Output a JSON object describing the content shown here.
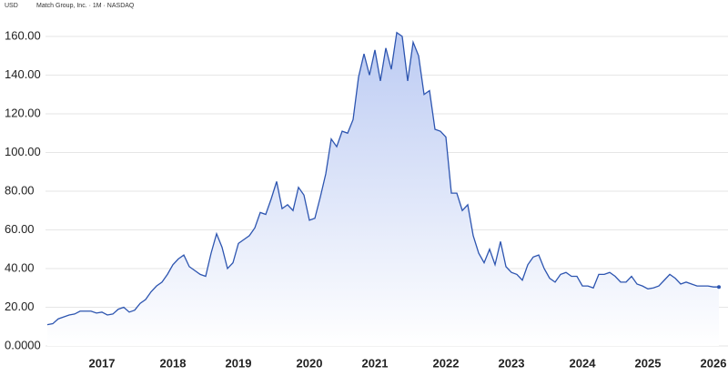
{
  "chart_data": {
    "type": "area",
    "currency": "USD",
    "title": "Match Group, Inc. · 1M · NASDAQ",
    "categories": [
      null,
      null,
      null,
      null,
      null,
      null,
      null,
      null,
      null,
      null,
      "2017",
      null,
      null,
      null,
      null,
      null,
      null,
      null,
      null,
      null,
      null,
      null,
      null,
      "2018",
      null,
      null,
      null,
      null,
      null,
      null,
      null,
      null,
      null,
      null,
      null,
      "2019",
      null,
      null,
      null,
      null,
      null,
      null,
      null,
      null,
      null,
      null,
      null,
      null,
      "2020",
      null,
      null,
      null,
      null,
      null,
      null,
      null,
      null,
      null,
      null,
      null,
      "2021",
      null,
      null,
      null,
      null,
      null,
      null,
      null,
      null,
      null,
      null,
      null,
      null,
      "2022",
      null,
      null,
      null,
      null,
      null,
      null,
      null,
      null,
      null,
      null,
      null,
      "2023",
      null,
      null,
      null,
      null,
      null,
      null,
      null,
      null,
      null,
      null,
      null,
      null,
      "2024",
      null,
      null,
      null,
      null,
      null,
      null,
      null,
      null,
      null,
      null,
      null,
      "2025",
      null,
      null,
      null,
      null,
      null,
      null,
      null,
      null,
      null,
      null,
      null,
      "2026",
      null
    ],
    "values": [
      11,
      11.5,
      14,
      15,
      16,
      16.5,
      18,
      18,
      18,
      17,
      17.5,
      16,
      16.5,
      19,
      20,
      17.5,
      18.5,
      22,
      24,
      28,
      31,
      33,
      37,
      42,
      45,
      47,
      41,
      39,
      37,
      36,
      48,
      58,
      51,
      40,
      43,
      53,
      55,
      57,
      61,
      69,
      68,
      76,
      85,
      71,
      73,
      70,
      82,
      78,
      65,
      66,
      77,
      89,
      107,
      103,
      111,
      110,
      117,
      139,
      151,
      140,
      153,
      137,
      154,
      143,
      162,
      160,
      137,
      157,
      150,
      130,
      132,
      112,
      111,
      108,
      79,
      79,
      70,
      73,
      57,
      48,
      43,
      50,
      42,
      54,
      41,
      38,
      37,
      34,
      42,
      46,
      47,
      40,
      35,
      33,
      37,
      38,
      36,
      36,
      31,
      31,
      30,
      37,
      37,
      38,
      36,
      33,
      33,
      36,
      32,
      31,
      29.5,
      30,
      31,
      34,
      37,
      35,
      32,
      33,
      32,
      31,
      31,
      31,
      30.5,
      30.5
    ],
    "color": "#2d55b0",
    "ylim": [
      0,
      160
    ],
    "yticks": [
      {
        "value": 0,
        "label": "0.0000"
      },
      {
        "value": 20,
        "label": "20.00"
      },
      {
        "value": 40,
        "label": "40.00"
      },
      {
        "value": 60,
        "label": "60.00"
      },
      {
        "value": 80,
        "label": "80.00"
      },
      {
        "value": 100,
        "label": "100.00"
      },
      {
        "value": 120,
        "label": "120.00"
      },
      {
        "value": 140,
        "label": "140.00"
      },
      {
        "value": 160,
        "label": "160.00"
      }
    ],
    "grid": true
  }
}
